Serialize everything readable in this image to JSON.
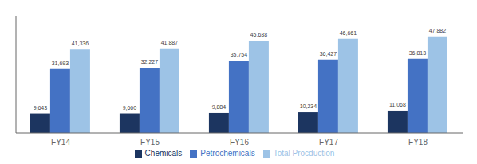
{
  "chart_data": {
    "type": "bar",
    "categories": [
      "FY14",
      "FY15",
      "FY16",
      "FY17",
      "FY18"
    ],
    "series": [
      {
        "name": "Chemicals",
        "color": "#1c3560",
        "values": [
          9643,
          9660,
          9884,
          10234,
          11068
        ],
        "value_labels": [
          "9,643",
          "9,660",
          "9,884",
          "10,234",
          "11,068"
        ]
      },
      {
        "name": "Petrochemicals",
        "color": "#4472c4",
        "values": [
          31693,
          32227,
          35754,
          36427,
          36813
        ],
        "value_labels": [
          "31,693",
          "32,227",
          "35,754",
          "36,427",
          "36,813"
        ]
      },
      {
        "name": "Total Procduction",
        "color": "#9dc3e6",
        "values": [
          41336,
          41887,
          45638,
          46661,
          47882
        ],
        "value_labels": [
          "41,336",
          "41,887",
          "45,638",
          "46,661",
          "47,882"
        ]
      }
    ],
    "ylim": [
      0,
      58000
    ],
    "data_labels": true,
    "tick_labels": "x",
    "grid": false,
    "legend": "bottom"
  }
}
